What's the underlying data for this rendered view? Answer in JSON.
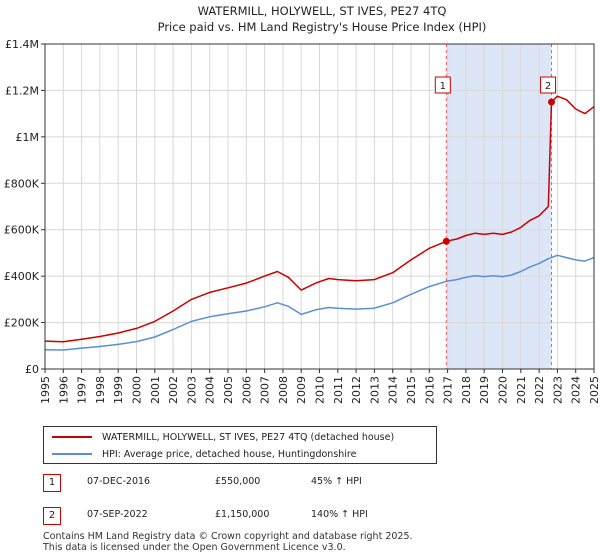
{
  "chart_data": {
    "type": "line",
    "title": "WATERMILL, HOLYWELL, ST IVES, PE27 4TQ",
    "subtitle": "Price paid vs. HM Land Registry's House Price Index (HPI)",
    "xlabel": "",
    "ylabel": "",
    "xlim": [
      1995,
      2025
    ],
    "ylim": [
      0,
      1400000
    ],
    "x_ticks": [
      "1995",
      "1996",
      "1997",
      "1998",
      "1999",
      "2000",
      "2001",
      "2002",
      "2003",
      "2004",
      "2005",
      "2006",
      "2007",
      "2008",
      "2009",
      "2010",
      "2011",
      "2012",
      "2013",
      "2014",
      "2015",
      "2016",
      "2017",
      "2018",
      "2019",
      "2020",
      "2021",
      "2022",
      "2023",
      "2024",
      "2025"
    ],
    "y_ticks": [
      {
        "value": 0,
        "label": "£0"
      },
      {
        "value": 200000,
        "label": "£200K"
      },
      {
        "value": 400000,
        "label": "£400K"
      },
      {
        "value": 600000,
        "label": "£600K"
      },
      {
        "value": 800000,
        "label": "£800K"
      },
      {
        "value": 1000000,
        "label": "£1M"
      },
      {
        "value": 1200000,
        "label": "£1.2M"
      },
      {
        "value": 1400000,
        "label": "£1.4M"
      }
    ],
    "grid": true,
    "shaded_region": {
      "from": 2016.93,
      "to": 2022.68,
      "color": "#dde6f7"
    },
    "series": [
      {
        "name": "WATERMILL, HOLYWELL, ST IVES, PE27 4TQ (detached house)",
        "color": "#cc0000",
        "points": [
          [
            1995.0,
            120000
          ],
          [
            1996.0,
            117000
          ],
          [
            1997.0,
            128000
          ],
          [
            1998.0,
            140000
          ],
          [
            1999.0,
            155000
          ],
          [
            2000.0,
            175000
          ],
          [
            2001.0,
            205000
          ],
          [
            2002.0,
            250000
          ],
          [
            2003.0,
            300000
          ],
          [
            2004.0,
            330000
          ],
          [
            2005.0,
            350000
          ],
          [
            2006.0,
            370000
          ],
          [
            2007.0,
            400000
          ],
          [
            2007.7,
            420000
          ],
          [
            2008.3,
            395000
          ],
          [
            2009.0,
            340000
          ],
          [
            2009.8,
            370000
          ],
          [
            2010.5,
            390000
          ],
          [
            2011.0,
            385000
          ],
          [
            2012.0,
            380000
          ],
          [
            2013.0,
            385000
          ],
          [
            2014.0,
            415000
          ],
          [
            2015.0,
            470000
          ],
          [
            2016.0,
            520000
          ],
          [
            2016.93,
            550000
          ],
          [
            2017.5,
            560000
          ],
          [
            2018.0,
            575000
          ],
          [
            2018.5,
            585000
          ],
          [
            2019.0,
            580000
          ],
          [
            2019.5,
            585000
          ],
          [
            2020.0,
            580000
          ],
          [
            2020.5,
            590000
          ],
          [
            2021.0,
            610000
          ],
          [
            2021.5,
            640000
          ],
          [
            2022.0,
            660000
          ],
          [
            2022.5,
            700000
          ],
          [
            2022.68,
            1150000
          ],
          [
            2023.0,
            1175000
          ],
          [
            2023.5,
            1160000
          ],
          [
            2024.0,
            1120000
          ],
          [
            2024.5,
            1100000
          ],
          [
            2025.0,
            1130000
          ]
        ]
      },
      {
        "name": "HPI: Average price, detached house, Huntingdonshire",
        "color": "#5b8fd4",
        "points": [
          [
            1995.0,
            83000
          ],
          [
            1996.0,
            82000
          ],
          [
            1997.0,
            90000
          ],
          [
            1998.0,
            97000
          ],
          [
            1999.0,
            106000
          ],
          [
            2000.0,
            118000
          ],
          [
            2001.0,
            138000
          ],
          [
            2002.0,
            170000
          ],
          [
            2003.0,
            205000
          ],
          [
            2004.0,
            225000
          ],
          [
            2005.0,
            238000
          ],
          [
            2006.0,
            250000
          ],
          [
            2007.0,
            268000
          ],
          [
            2007.7,
            285000
          ],
          [
            2008.3,
            270000
          ],
          [
            2009.0,
            235000
          ],
          [
            2009.8,
            255000
          ],
          [
            2010.5,
            265000
          ],
          [
            2011.0,
            262000
          ],
          [
            2012.0,
            258000
          ],
          [
            2013.0,
            262000
          ],
          [
            2014.0,
            285000
          ],
          [
            2015.0,
            322000
          ],
          [
            2016.0,
            355000
          ],
          [
            2016.93,
            378000
          ],
          [
            2017.5,
            385000
          ],
          [
            2018.0,
            395000
          ],
          [
            2018.5,
            402000
          ],
          [
            2019.0,
            398000
          ],
          [
            2019.5,
            402000
          ],
          [
            2020.0,
            398000
          ],
          [
            2020.5,
            405000
          ],
          [
            2021.0,
            420000
          ],
          [
            2021.5,
            440000
          ],
          [
            2022.0,
            455000
          ],
          [
            2022.5,
            475000
          ],
          [
            2022.68,
            480000
          ],
          [
            2023.0,
            490000
          ],
          [
            2023.5,
            480000
          ],
          [
            2024.0,
            470000
          ],
          [
            2024.5,
            465000
          ],
          [
            2025.0,
            480000
          ]
        ]
      }
    ],
    "annotations": [
      {
        "label": "1",
        "x": 2016.93,
        "value": 550000
      },
      {
        "label": "2",
        "x": 2022.68,
        "value": 1150000
      }
    ]
  },
  "legend": {
    "property_label": "WATERMILL, HOLYWELL, ST IVES, PE27 4TQ (detached house)",
    "hpi_label": "HPI: Average price, detached house, Huntingdonshire"
  },
  "sales": [
    {
      "num": "1",
      "date": "07-DEC-2016",
      "price": "£550,000",
      "hpi": "45% ↑ HPI"
    },
    {
      "num": "2",
      "date": "07-SEP-2022",
      "price": "£1,150,000",
      "hpi": "140% ↑ HPI"
    }
  ],
  "footer": {
    "line1": "Contains HM Land Registry data © Crown copyright and database right 2025.",
    "line2": "This data is licensed under the Open Government Licence v3.0."
  },
  "colors": {
    "property": "#cc0000",
    "hpi": "#5b8fd4",
    "shade": "#dde6f7",
    "grid": "#d8d8d8"
  }
}
